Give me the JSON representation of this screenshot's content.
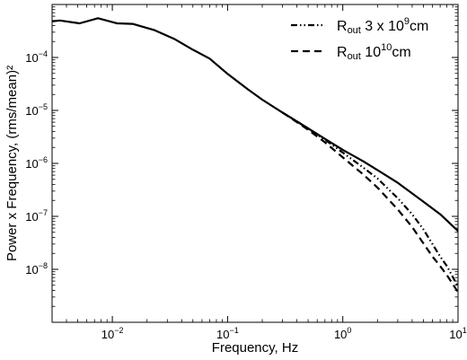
{
  "chart_data": {
    "type": "line",
    "xlabel": "Frequency, Hz",
    "ylabel": "Power x Frequency, (rms/mean)²",
    "x_scale": "log",
    "y_scale": "log",
    "xlim": [
      0.003,
      10
    ],
    "ylim": [
      1e-09,
      0.001
    ],
    "grid": false,
    "legend_position": "top-right",
    "x_ticks": [
      {
        "value": 0.01,
        "base": "10",
        "exp": "−2"
      },
      {
        "value": 0.1,
        "base": "10",
        "exp": "−1"
      },
      {
        "value": 1,
        "base": "10",
        "exp": "0"
      },
      {
        "value": 10,
        "base": "10",
        "exp": "1"
      }
    ],
    "y_ticks": [
      {
        "value": 1e-08,
        "base": "10",
        "exp": "−8"
      },
      {
        "value": 1e-07,
        "base": "10",
        "exp": "−7"
      },
      {
        "value": 1e-06,
        "base": "10",
        "exp": "−6"
      },
      {
        "value": 1e-05,
        "base": "10",
        "exp": "−5"
      },
      {
        "value": 0.0001,
        "base": "10",
        "exp": "−4"
      }
    ],
    "series": [
      {
        "style": "solid",
        "x": [
          0.003,
          0.0035,
          0.0052,
          0.0075,
          0.011,
          0.015,
          0.023,
          0.035,
          0.05,
          0.07,
          0.1,
          0.15,
          0.2,
          0.3,
          0.5,
          0.7,
          1,
          1.5,
          2,
          3,
          5,
          7,
          10
        ],
        "y": [
          0.00048,
          0.0005,
          0.00044,
          0.00055,
          0.00044,
          0.00043,
          0.00033,
          0.00022,
          0.00014,
          9.5e-05,
          4.9e-05,
          2.5e-05,
          1.6e-05,
          9.1e-06,
          4.6e-06,
          2.9e-06,
          1.8e-06,
          1.1e-06,
          7.5e-07,
          4.3e-07,
          1.9e-07,
          1.1e-07,
          5.3e-08
        ]
      },
      {
        "name_main": "R",
        "name_sub": "out",
        "name_rest": " 3 x 10",
        "name_sup": "9",
        "name_unit": "cm",
        "style": "dashdotdot",
        "x": [
          0.3,
          0.4,
          0.5,
          0.7,
          1,
          1.5,
          2,
          3,
          4,
          5,
          6,
          7,
          8,
          10
        ],
        "y": [
          9.1e-06,
          6.2e-06,
          4.5e-06,
          2.8e-06,
          1.6e-06,
          8.4e-07,
          5.2e-07,
          2.2e-07,
          1.1e-07,
          5.7e-08,
          3e-08,
          1.75e-08,
          1.15e-08,
          4.7e-09
        ]
      },
      {
        "name_main": "R",
        "name_sub": "out",
        "name_rest": " 10",
        "name_sup": "10",
        "name_unit": "cm",
        "style": "dashed",
        "x": [
          0.3,
          0.4,
          0.5,
          0.7,
          1,
          1.5,
          2,
          3,
          4,
          5,
          6,
          7,
          8,
          10
        ],
        "y": [
          9.1e-06,
          6e-06,
          4.3e-06,
          2.5e-06,
          1.3e-06,
          6.2e-07,
          3.5e-07,
          1.35e-07,
          6.3e-08,
          3.1e-08,
          1.75e-08,
          1.15e-08,
          7.8e-09,
          3.7e-09
        ]
      }
    ]
  }
}
